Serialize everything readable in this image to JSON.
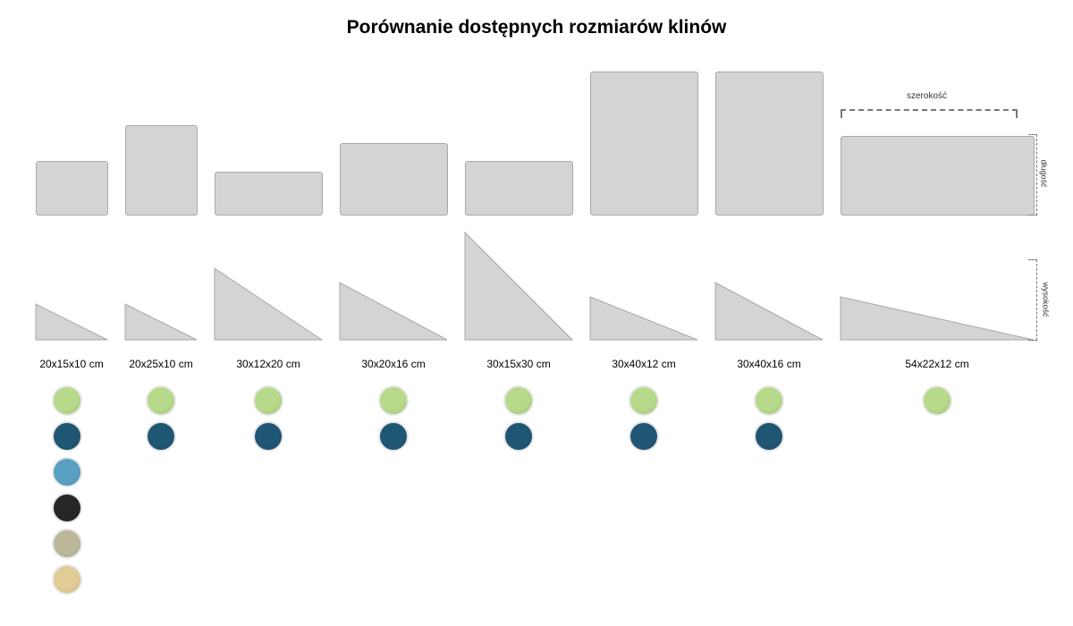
{
  "title": "Porównanie dostępnych rozmiarów klinów",
  "dimension_labels": {
    "width": "szerokość",
    "length": "długość",
    "height": "wysokość"
  },
  "colors": {
    "shape_fill": "#d4d4d4",
    "green": "#b7d98a",
    "dark_teal": "#1f5673",
    "light_blue": "#5aa0c3",
    "black": "#262626",
    "taupe": "#bdb89a",
    "beige": "#e2cc95"
  },
  "wedges": [
    {
      "label": "20x15x10 cm",
      "width_cm": 20,
      "length_cm": 15,
      "height_cm": 10,
      "colors": [
        "green",
        "dark_teal",
        "light_blue",
        "black",
        "taupe",
        "beige"
      ]
    },
    {
      "label": "20x25x10 cm",
      "width_cm": 20,
      "length_cm": 25,
      "height_cm": 10,
      "colors": [
        "green",
        "dark_teal"
      ]
    },
    {
      "label": "30x12x20 cm",
      "width_cm": 30,
      "length_cm": 12,
      "height_cm": 20,
      "colors": [
        "green",
        "dark_teal"
      ]
    },
    {
      "label": "30x20x16 cm",
      "width_cm": 30,
      "length_cm": 20,
      "height_cm": 16,
      "colors": [
        "green",
        "dark_teal"
      ]
    },
    {
      "label": "30x15x30 cm",
      "width_cm": 30,
      "length_cm": 15,
      "height_cm": 30,
      "colors": [
        "green",
        "dark_teal"
      ]
    },
    {
      "label": "30x40x12 cm",
      "width_cm": 30,
      "length_cm": 40,
      "height_cm": 12,
      "colors": [
        "green",
        "dark_teal"
      ]
    },
    {
      "label": "30x40x16 cm",
      "width_cm": 30,
      "length_cm": 40,
      "height_cm": 16,
      "colors": [
        "green",
        "dark_teal"
      ]
    },
    {
      "label": "54x22x12 cm",
      "width_cm": 54,
      "length_cm": 22,
      "height_cm": 12,
      "colors": [
        "green"
      ]
    }
  ]
}
